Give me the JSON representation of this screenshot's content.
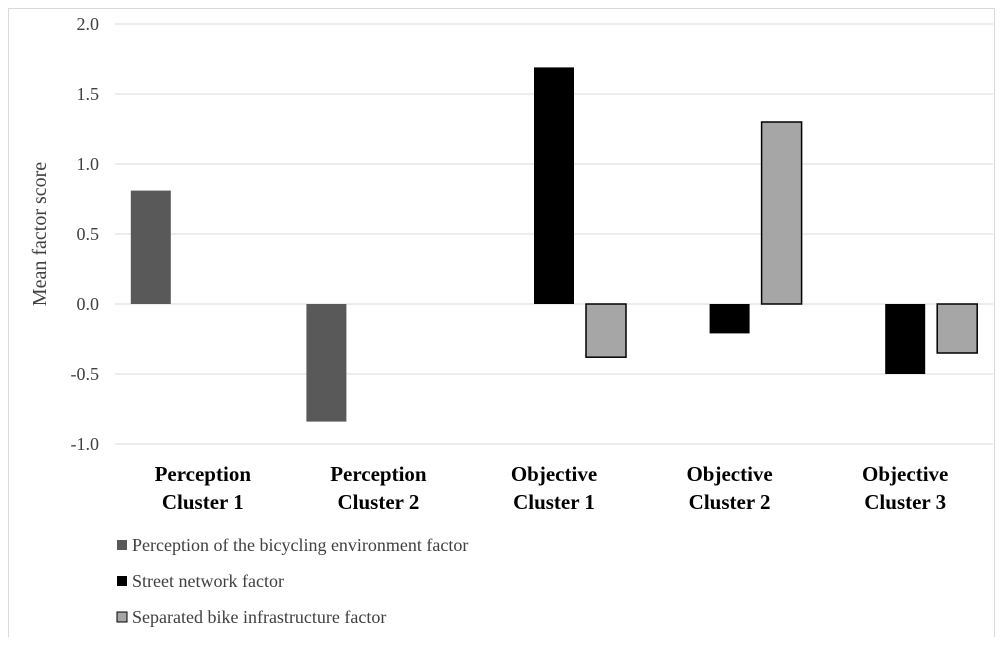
{
  "chart_data": {
    "type": "bar",
    "title": "",
    "xlabel": "",
    "ylabel": "Mean factor score",
    "ylim": [
      -1.0,
      2.0
    ],
    "yticks": [
      "2.0",
      "1.5",
      "1.0",
      "0.5",
      "0.0",
      "-0.5",
      "-1.0"
    ],
    "ytick_values": [
      2.0,
      1.5,
      1.0,
      0.5,
      0.0,
      -0.5,
      -1.0
    ],
    "grid": true,
    "legend_position": "bottom-left",
    "categories": [
      [
        "Perception",
        "Cluster 1"
      ],
      [
        "Perception",
        "Cluster 2"
      ],
      [
        "Objective",
        "Cluster 1"
      ],
      [
        "Objective",
        "Cluster 2"
      ],
      [
        "Objective",
        "Cluster 3"
      ]
    ],
    "series": [
      {
        "name": "Perception of the bicycling environment factor",
        "color": "#595959",
        "outline": false,
        "slot": 0,
        "values": [
          0.81,
          -0.84,
          null,
          null,
          null
        ]
      },
      {
        "name": "Street network factor",
        "color": "#000000",
        "outline": false,
        "slot": 1,
        "values": [
          null,
          null,
          1.69,
          -0.21,
          -0.5
        ]
      },
      {
        "name": "Separated bike infrastructure factor",
        "color": "#a6a6a6",
        "outline": true,
        "slot": 2,
        "values": [
          null,
          null,
          -0.38,
          1.3,
          -0.35
        ]
      }
    ]
  }
}
